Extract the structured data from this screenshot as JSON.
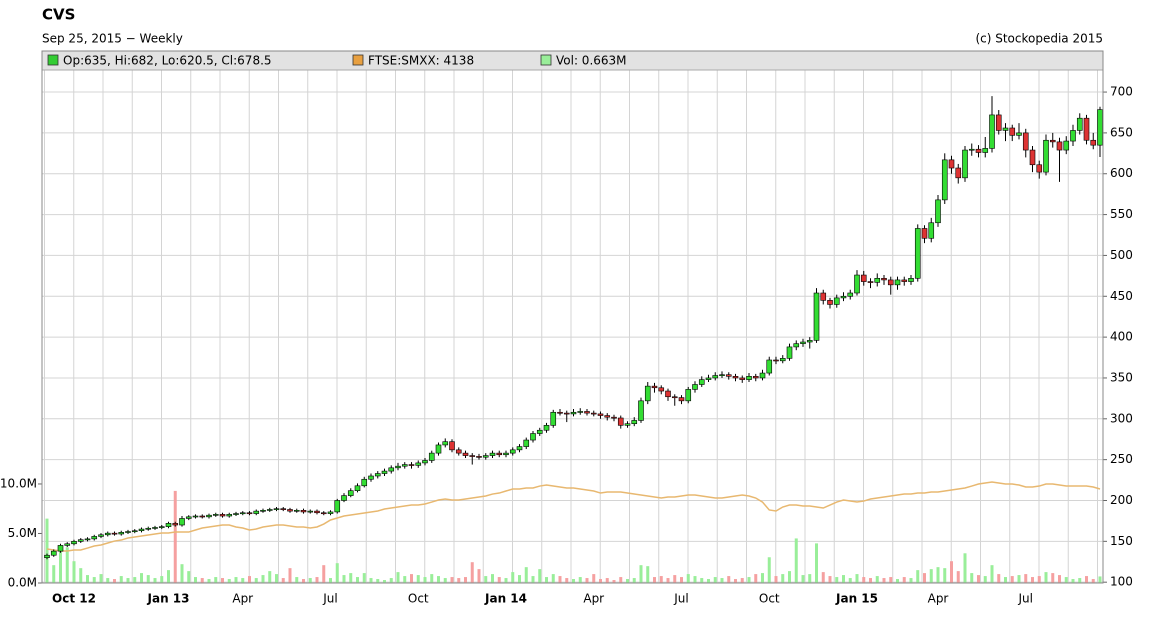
{
  "chart_data": {
    "type": "candlestick",
    "title": "CVS",
    "subtitle": "Sep 25, 2015 − Weekly",
    "credit": "(c) Stockopedia 2015",
    "legend": [
      {
        "label": "Op:635, Hi:682, Lo:620.5, Cl:678.5",
        "color": "#33cc33"
      },
      {
        "label": "FTSE:SMXX: 4138",
        "color": "#e8a040"
      },
      {
        "label": "Vol: 0.663M",
        "color": "#99ee99"
      }
    ],
    "ylim": [
      99,
      727
    ],
    "yticks": [
      100,
      150,
      200,
      250,
      300,
      350,
      400,
      450,
      500,
      550,
      600,
      650,
      700
    ],
    "grid": true,
    "up_color": "#33dd33",
    "down_color": "#dd3333",
    "categories": [
      null,
      null,
      null,
      null,
      "Oct 12",
      null,
      null,
      null,
      null,
      null,
      null,
      null,
      null,
      null,
      null,
      null,
      null,
      null,
      "Jan 13",
      null,
      null,
      null,
      null,
      null,
      null,
      null,
      null,
      null,
      null,
      "Apr",
      null,
      null,
      null,
      null,
      null,
      null,
      null,
      null,
      null,
      null,
      null,
      null,
      "Jul",
      null,
      null,
      null,
      null,
      null,
      null,
      null,
      null,
      null,
      null,
      null,
      null,
      "Oct",
      null,
      null,
      null,
      null,
      null,
      null,
      null,
      null,
      null,
      null,
      null,
      null,
      "Jan 14",
      null,
      null,
      null,
      null,
      null,
      null,
      null,
      null,
      null,
      null,
      null,
      null,
      "Apr",
      null,
      null,
      null,
      null,
      null,
      null,
      null,
      null,
      null,
      null,
      null,
      null,
      "Jul",
      null,
      null,
      null,
      null,
      null,
      null,
      null,
      null,
      null,
      null,
      null,
      null,
      "Oct",
      null,
      null,
      null,
      null,
      null,
      null,
      null,
      null,
      null,
      null,
      null,
      null,
      "Jan 15",
      null,
      null,
      null,
      null,
      null,
      null,
      null,
      null,
      null,
      null,
      null,
      "Apr",
      null,
      null,
      null,
      null,
      null,
      null,
      null,
      null,
      null,
      null,
      null,
      null,
      "Jul",
      null,
      null,
      null,
      null,
      null,
      null,
      null,
      null,
      null,
      null,
      null
    ],
    "ohlc": [
      [
        130,
        135,
        128,
        133
      ],
      [
        133,
        140,
        131,
        138
      ],
      [
        138,
        147,
        136,
        145
      ],
      [
        145,
        149,
        143,
        147
      ],
      [
        147,
        152,
        145,
        150
      ],
      [
        150,
        154,
        148,
        152
      ],
      [
        152,
        155,
        150,
        153
      ],
      [
        153,
        158,
        151,
        156
      ],
      [
        156,
        160,
        154,
        158
      ],
      [
        158,
        162,
        156,
        160
      ],
      [
        160,
        162,
        157,
        159
      ],
      [
        159,
        163,
        157,
        161
      ],
      [
        161,
        164,
        159,
        162
      ],
      [
        162,
        165,
        160,
        163
      ],
      [
        163,
        167,
        161,
        165
      ],
      [
        165,
        168,
        163,
        166
      ],
      [
        166,
        169,
        164,
        167
      ],
      [
        167,
        170,
        165,
        168
      ],
      [
        168,
        174,
        166,
        172
      ],
      [
        172,
        174,
        168,
        170
      ],
      [
        170,
        181,
        168,
        178
      ],
      [
        178,
        182,
        176,
        180
      ],
      [
        180,
        183,
        178,
        181
      ],
      [
        181,
        183,
        178,
        180
      ],
      [
        180,
        184,
        178,
        182
      ],
      [
        182,
        185,
        180,
        183
      ],
      [
        183,
        185,
        179,
        181
      ],
      [
        181,
        185,
        179,
        183
      ],
      [
        183,
        186,
        181,
        184
      ],
      [
        184,
        187,
        182,
        185
      ],
      [
        185,
        187,
        182,
        184
      ],
      [
        184,
        189,
        182,
        187
      ],
      [
        187,
        190,
        185,
        188
      ],
      [
        188,
        191,
        186,
        189
      ],
      [
        189,
        192,
        187,
        190
      ],
      [
        190,
        192,
        187,
        189
      ],
      [
        189,
        191,
        185,
        187
      ],
      [
        187,
        190,
        185,
        188
      ],
      [
        188,
        190,
        184,
        186
      ],
      [
        186,
        189,
        184,
        187
      ],
      [
        187,
        189,
        183,
        185
      ],
      [
        185,
        187,
        182,
        184
      ],
      [
        184,
        188,
        182,
        186
      ],
      [
        186,
        202,
        184,
        200
      ],
      [
        200,
        209,
        198,
        206
      ],
      [
        206,
        215,
        204,
        212
      ],
      [
        212,
        221,
        210,
        218
      ],
      [
        218,
        229,
        216,
        226
      ],
      [
        226,
        233,
        223,
        230
      ],
      [
        230,
        236,
        227,
        233
      ],
      [
        233,
        239,
        230,
        236
      ],
      [
        236,
        243,
        233,
        240
      ],
      [
        240,
        246,
        237,
        242
      ],
      [
        242,
        247,
        239,
        244
      ],
      [
        244,
        247,
        239,
        243
      ],
      [
        243,
        249,
        240,
        246
      ],
      [
        246,
        252,
        243,
        249
      ],
      [
        249,
        261,
        246,
        258
      ],
      [
        258,
        271,
        255,
        268
      ],
      [
        268,
        276,
        265,
        272
      ],
      [
        272,
        275,
        259,
        262
      ],
      [
        262,
        265,
        255,
        258
      ],
      [
        258,
        261,
        252,
        255
      ],
      [
        255,
        258,
        244,
        254
      ],
      [
        254,
        257,
        250,
        253
      ],
      [
        253,
        258,
        250,
        255
      ],
      [
        255,
        261,
        252,
        258
      ],
      [
        258,
        261,
        253,
        256
      ],
      [
        256,
        261,
        253,
        258
      ],
      [
        258,
        265,
        255,
        262
      ],
      [
        262,
        269,
        259,
        266
      ],
      [
        266,
        277,
        263,
        274
      ],
      [
        274,
        285,
        271,
        282
      ],
      [
        282,
        289,
        279,
        286
      ],
      [
        286,
        295,
        283,
        292
      ],
      [
        292,
        311,
        289,
        308
      ],
      [
        308,
        312,
        304,
        307
      ],
      [
        307,
        310,
        296,
        306
      ],
      [
        306,
        312,
        303,
        308
      ],
      [
        308,
        313,
        305,
        309
      ],
      [
        309,
        312,
        304,
        307
      ],
      [
        307,
        310,
        303,
        306
      ],
      [
        306,
        309,
        300,
        304
      ],
      [
        304,
        307,
        298,
        302
      ],
      [
        302,
        305,
        297,
        301
      ],
      [
        301,
        304,
        288,
        292
      ],
      [
        292,
        297,
        289,
        294
      ],
      [
        294,
        302,
        291,
        298
      ],
      [
        298,
        326,
        295,
        322
      ],
      [
        322,
        345,
        318,
        340
      ],
      [
        340,
        344,
        332,
        338
      ],
      [
        338,
        341,
        330,
        334
      ],
      [
        334,
        337,
        322,
        327
      ],
      [
        327,
        330,
        316,
        326
      ],
      [
        326,
        329,
        318,
        322
      ],
      [
        322,
        339,
        319,
        336
      ],
      [
        336,
        346,
        332,
        342
      ],
      [
        342,
        352,
        339,
        348
      ],
      [
        348,
        354,
        345,
        350
      ],
      [
        350,
        357,
        347,
        353
      ],
      [
        353,
        358,
        350,
        354
      ],
      [
        354,
        357,
        348,
        352
      ],
      [
        352,
        355,
        346,
        350
      ],
      [
        350,
        353,
        344,
        348
      ],
      [
        348,
        356,
        345,
        352
      ],
      [
        352,
        355,
        346,
        350
      ],
      [
        350,
        360,
        347,
        356
      ],
      [
        356,
        376,
        353,
        372
      ],
      [
        372,
        376,
        367,
        371
      ],
      [
        371,
        378,
        368,
        374
      ],
      [
        374,
        392,
        371,
        388
      ],
      [
        388,
        396,
        384,
        392
      ],
      [
        392,
        398,
        388,
        394
      ],
      [
        394,
        400,
        386,
        396
      ],
      [
        396,
        460,
        393,
        454
      ],
      [
        454,
        458,
        440,
        445
      ],
      [
        445,
        448,
        435,
        440
      ],
      [
        440,
        452,
        436,
        448
      ],
      [
        448,
        455,
        444,
        450
      ],
      [
        450,
        458,
        446,
        454
      ],
      [
        454,
        482,
        451,
        476
      ],
      [
        476,
        481,
        463,
        468
      ],
      [
        468,
        472,
        460,
        467
      ],
      [
        467,
        478,
        462,
        472
      ],
      [
        472,
        476,
        464,
        470
      ],
      [
        470,
        474,
        452,
        464
      ],
      [
        464,
        474,
        458,
        470
      ],
      [
        470,
        474,
        463,
        468
      ],
      [
        468,
        476,
        464,
        472
      ],
      [
        472,
        538,
        468,
        533
      ],
      [
        533,
        537,
        515,
        521
      ],
      [
        521,
        546,
        516,
        540
      ],
      [
        540,
        574,
        535,
        568
      ],
      [
        568,
        625,
        563,
        617
      ],
      [
        617,
        622,
        600,
        607
      ],
      [
        607,
        612,
        588,
        595
      ],
      [
        595,
        634,
        590,
        629
      ],
      [
        629,
        637,
        622,
        630
      ],
      [
        630,
        635,
        620,
        626
      ],
      [
        626,
        645,
        620,
        631
      ],
      [
        631,
        695,
        626,
        672
      ],
      [
        672,
        678,
        648,
        653
      ],
      [
        653,
        662,
        640,
        656
      ],
      [
        656,
        660,
        640,
        647
      ],
      [
        647,
        662,
        642,
        650
      ],
      [
        650,
        655,
        620,
        629
      ],
      [
        629,
        634,
        602,
        611
      ],
      [
        611,
        616,
        594,
        602
      ],
      [
        602,
        648,
        598,
        641
      ],
      [
        641,
        650,
        632,
        639
      ],
      [
        639,
        644,
        590,
        629
      ],
      [
        629,
        646,
        624,
        640
      ],
      [
        640,
        660,
        634,
        653
      ],
      [
        653,
        674,
        648,
        668
      ],
      [
        668,
        672,
        636,
        641
      ],
      [
        641,
        650,
        630,
        635
      ],
      [
        635,
        682,
        620.5,
        678.5
      ]
    ],
    "volume": {
      "ylim": [
        0,
        51.8
      ],
      "yticks": [
        {
          "value": 0,
          "label": "0.0M"
        },
        {
          "value": 5,
          "label": "5.0M"
        },
        {
          "value": 10,
          "label": "10.0M"
        }
      ],
      "up_color": "#99ee99",
      "down_color": "#f5a0a0",
      "values": [
        6.5,
        1.8,
        3.5,
        3.6,
        2.2,
        1.5,
        0.8,
        0.6,
        0.9,
        0.5,
        0.4,
        0.7,
        0.5,
        0.6,
        1.0,
        0.8,
        0.5,
        0.7,
        1.3,
        9.3,
        1.9,
        1.2,
        0.6,
        0.5,
        0.4,
        0.6,
        0.5,
        0.4,
        0.6,
        0.5,
        0.7,
        0.5,
        0.8,
        1.2,
        0.9,
        0.5,
        1.5,
        0.6,
        0.4,
        0.5,
        0.6,
        1.8,
        0.5,
        2.0,
        0.8,
        1.0,
        0.6,
        1.0,
        0.5,
        0.4,
        0.3,
        0.5,
        1.1,
        0.7,
        0.9,
        0.8,
        0.6,
        0.9,
        0.7,
        0.5,
        0.6,
        0.5,
        0.6,
        2.1,
        1.4,
        0.7,
        0.9,
        0.6,
        0.5,
        1.1,
        0.8,
        1.6,
        0.7,
        1.4,
        0.6,
        0.9,
        0.7,
        0.5,
        0.4,
        0.6,
        0.5,
        0.9,
        0.4,
        0.5,
        0.3,
        0.6,
        0.4,
        0.5,
        1.8,
        1.7,
        0.6,
        0.7,
        0.5,
        0.8,
        0.6,
        0.9,
        0.7,
        0.5,
        0.4,
        0.6,
        0.5,
        0.7,
        0.4,
        0.5,
        0.6,
        0.9,
        1.0,
        2.6,
        0.7,
        0.9,
        1.2,
        4.5,
        0.8,
        0.9,
        4.0,
        1.1,
        0.7,
        0.6,
        0.8,
        0.5,
        0.9,
        0.6,
        0.5,
        0.7,
        0.5,
        0.6,
        0.4,
        0.6,
        0.5,
        1.3,
        1.0,
        1.4,
        1.6,
        1.5,
        2.2,
        1.2,
        3.0,
        1.0,
        0.8,
        0.7,
        1.8,
        0.9,
        0.6,
        0.7,
        0.8,
        0.9,
        0.6,
        0.7,
        1.1,
        1.0,
        0.8,
        0.6,
        0.4,
        0.5,
        0.7,
        0.4,
        0.663
      ]
    },
    "ftse": {
      "color": "#e8b870",
      "ylim": [
        2740,
        10370
      ],
      "values": [
        3246,
        3231,
        3216,
        3216,
        3231,
        3231,
        3260,
        3290,
        3305,
        3335,
        3364,
        3379,
        3409,
        3424,
        3439,
        3454,
        3469,
        3484,
        3484,
        3498,
        3498,
        3498,
        3528,
        3558,
        3573,
        3588,
        3602,
        3602,
        3573,
        3558,
        3528,
        3543,
        3573,
        3588,
        3602,
        3602,
        3588,
        3573,
        3573,
        3558,
        3573,
        3617,
        3677,
        3707,
        3736,
        3751,
        3766,
        3781,
        3796,
        3811,
        3840,
        3855,
        3870,
        3885,
        3900,
        3900,
        3915,
        3944,
        3974,
        3989,
        3974,
        3974,
        3989,
        4004,
        4019,
        4034,
        4063,
        4078,
        4108,
        4138,
        4138,
        4153,
        4153,
        4182,
        4197,
        4182,
        4168,
        4153,
        4153,
        4138,
        4123,
        4108,
        4078,
        4093,
        4093,
        4093,
        4078,
        4063,
        4049,
        4034,
        4019,
        4004,
        4019,
        4019,
        4034,
        4049,
        4049,
        4034,
        4019,
        4004,
        4004,
        4019,
        4034,
        4049,
        4034,
        4004,
        3944,
        3826,
        3811,
        3870,
        3900,
        3900,
        3885,
        3885,
        3870,
        3855,
        3900,
        3944,
        3974,
        3959,
        3944,
        3959,
        3989,
        4004,
        4019,
        4034,
        4049,
        4063,
        4063,
        4078,
        4078,
        4093,
        4093,
        4108,
        4123,
        4138,
        4153,
        4182,
        4212,
        4227,
        4242,
        4227,
        4212,
        4212,
        4197,
        4168,
        4168,
        4182,
        4212,
        4212,
        4197,
        4182,
        4182,
        4182,
        4182,
        4168,
        4138
      ]
    }
  }
}
